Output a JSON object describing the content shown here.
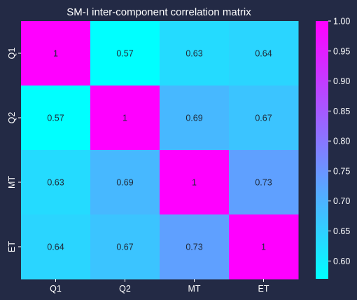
{
  "colors": {
    "background": "#232a45",
    "low": "#00ffff",
    "high": "#ff00ff"
  },
  "chart_data": {
    "type": "heatmap",
    "title": "SM-I inter-component correlation matrix",
    "x_categories": [
      "Q1",
      "Q2",
      "MT",
      "ET"
    ],
    "y_categories": [
      "Q1",
      "Q2",
      "MT",
      "ET"
    ],
    "values": [
      [
        1,
        0.57,
        0.63,
        0.64
      ],
      [
        0.57,
        1,
        0.69,
        0.67
      ],
      [
        0.63,
        0.69,
        1,
        0.73
      ],
      [
        0.64,
        0.67,
        0.73,
        1
      ]
    ],
    "cell_labels": [
      [
        "1",
        "0.57",
        "0.63",
        "0.64"
      ],
      [
        "0.57",
        "1",
        "0.69",
        "0.67"
      ],
      [
        "0.63",
        "0.69",
        "1",
        "0.73"
      ],
      [
        "0.64",
        "0.67",
        "0.73",
        "1"
      ]
    ],
    "colorbar": {
      "range": [
        0.57,
        1.0
      ],
      "ticks": [
        0.6,
        0.65,
        0.7,
        0.75,
        0.8,
        0.85,
        0.9,
        0.95,
        1.0
      ],
      "tick_labels": [
        "0.60",
        "0.65",
        "0.70",
        "0.75",
        "0.80",
        "0.85",
        "0.90",
        "0.95",
        "1.00"
      ]
    },
    "colormap": "cool"
  }
}
